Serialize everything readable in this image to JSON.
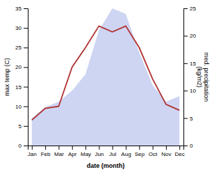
{
  "chart_data": {
    "type": "line",
    "categories": [
      "Jan",
      "Feb",
      "Mar",
      "Apr",
      "May",
      "Jun",
      "Jul",
      "Aug",
      "Sep",
      "Oct",
      "Nov",
      "Dec"
    ],
    "series": [
      {
        "type": "area",
        "axis": "y2",
        "color": "#c5cef0",
        "values": [
          5,
          7,
          8,
          10,
          13,
          21,
          25,
          24,
          17,
          11,
          8,
          9
        ]
      },
      {
        "type": "line",
        "color": "#b03030",
        "values": [
          6.5,
          9.5,
          10,
          20,
          25,
          30.5,
          29,
          30.5,
          25,
          17,
          10.5,
          9
        ]
      }
    ],
    "xlabel": "date (month)",
    "ylabel": "max temp (C)",
    "y2label": "med. precipitation\n(kg/m2)",
    "ylim": [
      0,
      35
    ],
    "yticks": [
      0,
      5,
      10,
      15,
      20,
      25,
      30,
      35
    ],
    "y2lim": [
      0,
      25
    ],
    "y2ticks": [
      0,
      5,
      10,
      15,
      20,
      25
    ]
  }
}
